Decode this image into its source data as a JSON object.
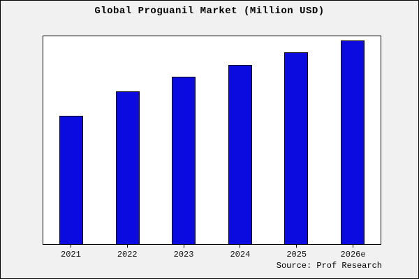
{
  "title": "Global Proguanil Market (Million USD)",
  "source_note": "Source: Prof Research",
  "colors": {
    "frame_background": "#f1f1f1",
    "plot_background": "#ffffff",
    "bar_fill": "#0b0be0",
    "bar_border": "#000000",
    "text": "#000000"
  },
  "chart_data": {
    "type": "bar",
    "title": "Global Proguanil Market (Million USD)",
    "categories": [
      "2021",
      "2022",
      "2023",
      "2024",
      "2025",
      "2026e"
    ],
    "values": [
      63,
      75,
      82,
      88,
      94,
      100
    ],
    "xlabel": "",
    "ylabel": "",
    "ylim": [
      0,
      102
    ],
    "grid": false,
    "legend": false,
    "bar_color": "#0b0be0",
    "annotation": "Source: Prof Research"
  }
}
